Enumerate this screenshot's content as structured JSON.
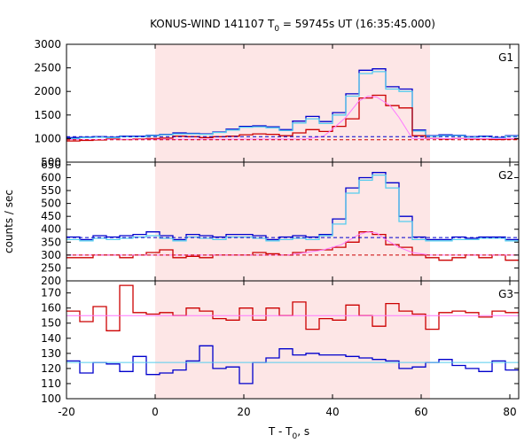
{
  "chart_data": {
    "type": "line",
    "title": {
      "prefix": "KONUS-WIND 141107 T",
      "sub": "0",
      "suffix": " = 59745s UT (16:35:45.000)"
    },
    "xlabel": {
      "prefix": "T - T",
      "sub": "0",
      "suffix": ", s"
    },
    "ylabel": "counts / sec",
    "xlim": [
      -20,
      82
    ],
    "x_ticks": [
      -20,
      0,
      20,
      40,
      60,
      80
    ],
    "x_tick_labels": [
      "-20",
      "0",
      "20",
      "40",
      "60",
      "80"
    ],
    "highlight_interval": [
      0,
      62
    ],
    "highlight_color": "#fde6e6",
    "grid": false,
    "bin_edges": [
      -20,
      -17,
      -14,
      -11,
      -8,
      -5,
      -2,
      1,
      4,
      7,
      10,
      13,
      16,
      19,
      22,
      25,
      28,
      31,
      34,
      37,
      40,
      43,
      46,
      49,
      52,
      55,
      58,
      61,
      64,
      67,
      70,
      73,
      76,
      79,
      82
    ],
    "panels": [
      {
        "label": "G1",
        "ylim": [
          500,
          3000
        ],
        "y_ticks": [
          500,
          1000,
          1500,
          2000,
          2500,
          3000
        ],
        "series": [
          {
            "color": "#0000cc",
            "style": "step",
            "values": [
              1020,
              1030,
              1040,
              1030,
              1050,
              1050,
              1070,
              1090,
              1120,
              1110,
              1100,
              1140,
              1200,
              1260,
              1270,
              1250,
              1190,
              1370,
              1470,
              1360,
              1550,
              1950,
              2450,
              2480,
              2100,
              2050,
              1180,
              1060,
              1080,
              1070,
              1040,
              1050,
              1020,
              1060
            ]
          },
          {
            "color": "#55ccee",
            "style": "step",
            "values": [
              1000,
              1020,
              1030,
              1020,
              1040,
              1040,
              1060,
              1080,
              1100,
              1100,
              1090,
              1130,
              1180,
              1240,
              1250,
              1230,
              1170,
              1330,
              1420,
              1320,
              1500,
              1900,
              2380,
              2420,
              2050,
              2000,
              1160,
              1050,
              1060,
              1060,
              1030,
              1040,
              1010,
              1050
            ]
          },
          {
            "color": "#cc0000",
            "style": "step",
            "values": [
              950,
              960,
              970,
              990,
              980,
              990,
              1000,
              1010,
              1050,
              1040,
              1020,
              1040,
              1050,
              1080,
              1100,
              1090,
              1060,
              1120,
              1190,
              1150,
              1260,
              1420,
              1860,
              1920,
              1700,
              1650,
              1060,
              1000,
              990,
              1000,
              990,
              990,
              980,
              990
            ]
          },
          {
            "color": "#ff77ff",
            "style": "line",
            "points": [
              [
                -20,
                980
              ],
              [
                34,
                990
              ],
              [
                38,
                1050
              ],
              [
                40,
                1200
              ],
              [
                43,
                1450
              ],
              [
                46,
                1800
              ],
              [
                48,
                1900
              ],
              [
                50,
                1880
              ],
              [
                53,
                1700
              ],
              [
                55,
                1450
              ],
              [
                57,
                1150
              ],
              [
                58,
                1000
              ],
              [
                60,
                1000
              ],
              [
                82,
                1000
              ]
            ]
          },
          {
            "color": "#0000cc",
            "style": "dash",
            "points": [
              [
                -20,
                1040
              ],
              [
                82,
                1040
              ]
            ]
          },
          {
            "color": "#cc0000",
            "style": "dash",
            "points": [
              [
                -20,
                975
              ],
              [
                82,
                975
              ]
            ]
          }
        ]
      },
      {
        "label": "G2",
        "ylim": [
          200,
          660
        ],
        "y_ticks": [
          200,
          250,
          300,
          350,
          400,
          450,
          500,
          550,
          600,
          650
        ],
        "series": [
          {
            "color": "#0000cc",
            "style": "step",
            "values": [
              370,
              360,
              375,
              370,
              375,
              380,
              390,
              375,
              360,
              380,
              375,
              370,
              380,
              380,
              375,
              360,
              370,
              375,
              370,
              380,
              440,
              560,
              600,
              620,
              580,
              450,
              370,
              360,
              360,
              370,
              365,
              370,
              370,
              360
            ]
          },
          {
            "color": "#55ccee",
            "style": "step",
            "values": [
              360,
              355,
              365,
              360,
              365,
              370,
              375,
              365,
              355,
              370,
              365,
              360,
              370,
              370,
              365,
              355,
              360,
              365,
              360,
              375,
              420,
              540,
              590,
              610,
              560,
              430,
              360,
              355,
              355,
              360,
              360,
              365,
              365,
              355
            ]
          },
          {
            "color": "#cc0000",
            "style": "step",
            "values": [
              290,
              290,
              300,
              300,
              290,
              300,
              310,
              320,
              290,
              295,
              290,
              300,
              300,
              300,
              310,
              305,
              300,
              310,
              320,
              320,
              330,
              350,
              390,
              380,
              340,
              330,
              300,
              290,
              280,
              290,
              300,
              290,
              300,
              280
            ]
          },
          {
            "color": "#ff77ff",
            "style": "line",
            "points": [
              [
                -20,
                300
              ],
              [
                30,
                300
              ],
              [
                34,
                310
              ],
              [
                38,
                320
              ],
              [
                42,
                340
              ],
              [
                46,
                380
              ],
              [
                48,
                390
              ],
              [
                50,
                385
              ],
              [
                52,
                360
              ],
              [
                55,
                330
              ],
              [
                58,
                310
              ],
              [
                62,
                300
              ],
              [
                82,
                300
              ]
            ]
          },
          {
            "color": "#0000cc",
            "style": "dash",
            "points": [
              [
                -20,
                368
              ],
              [
                82,
                368
              ]
            ]
          },
          {
            "color": "#cc0000",
            "style": "dash",
            "points": [
              [
                -20,
                300
              ],
              [
                82,
                300
              ]
            ]
          }
        ]
      },
      {
        "label": "G3",
        "ylim": [
          100,
          178
        ],
        "y_ticks": [
          100,
          110,
          120,
          130,
          140,
          150,
          160,
          170
        ],
        "series": [
          {
            "color": "#cc0000",
            "style": "step",
            "values": [
              158,
              151,
              161,
              145,
              175,
              157,
              156,
              157,
              155,
              160,
              158,
              153,
              152,
              160,
              152,
              160,
              155,
              164,
              146,
              153,
              152,
              162,
              155,
              148,
              163,
              158,
              156,
              146,
              157,
              158,
              157,
              154,
              158,
              157
            ]
          },
          {
            "color": "#ff77ff",
            "style": "line",
            "points": [
              [
                -20,
                155
              ],
              [
                82,
                155
              ]
            ]
          },
          {
            "color": "#0000cc",
            "style": "step",
            "values": [
              125,
              117,
              124,
              123,
              118,
              128,
              116,
              117,
              119,
              125,
              135,
              120,
              121,
              110,
              124,
              127,
              133,
              129,
              130,
              129,
              129,
              128,
              127,
              126,
              125,
              120,
              121,
              124,
              126,
              122,
              120,
              118,
              125,
              119
            ]
          },
          {
            "color": "#55ccee",
            "style": "line",
            "points": [
              [
                -20,
                124
              ],
              [
                82,
                124
              ]
            ]
          }
        ]
      }
    ]
  }
}
